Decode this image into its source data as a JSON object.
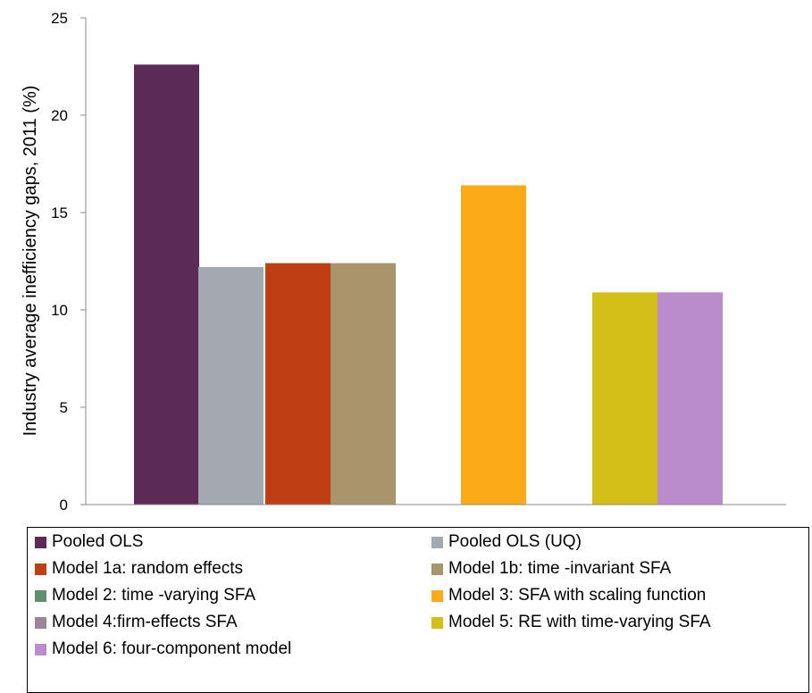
{
  "chart_data": {
    "type": "bar",
    "title": "",
    "xlabel": "",
    "ylabel": "Industry average inefficiency gaps, 2011 (%)",
    "ylim": [
      0,
      25
    ],
    "yticks": [
      "0",
      "5",
      "10",
      "15",
      "20",
      "25"
    ],
    "grid": false,
    "legend_position": "bottom",
    "series": [
      {
        "name": "Pooled OLS",
        "value": 22.6,
        "color": "#5b2a56"
      },
      {
        "name": "Pooled OLS (UQ)",
        "value": 12.2,
        "color": "#a4a8b0"
      },
      {
        "name": "Model 1a: random effects",
        "value": 12.4,
        "color": "#bf3f14"
      },
      {
        "name": "Model 1b: time -invariant SFA",
        "value": 12.4,
        "color": "#a8956b"
      },
      {
        "name": "Model 2: time  -varying SFA",
        "value": null,
        "color": "#5f8f6c"
      },
      {
        "name": "Model 3: SFA with scaling function",
        "value": 16.4,
        "color": "#fbab17"
      },
      {
        "name": "Model 4:firm-effects SFA",
        "value": null,
        "color": "#9b8597"
      },
      {
        "name": "Model 5: RE with time-varying SFA",
        "value": 10.9,
        "color": "#d3bf17"
      },
      {
        "name": "Model 6: four-component model",
        "value": 10.9,
        "color": "#ba8ccb"
      }
    ]
  }
}
